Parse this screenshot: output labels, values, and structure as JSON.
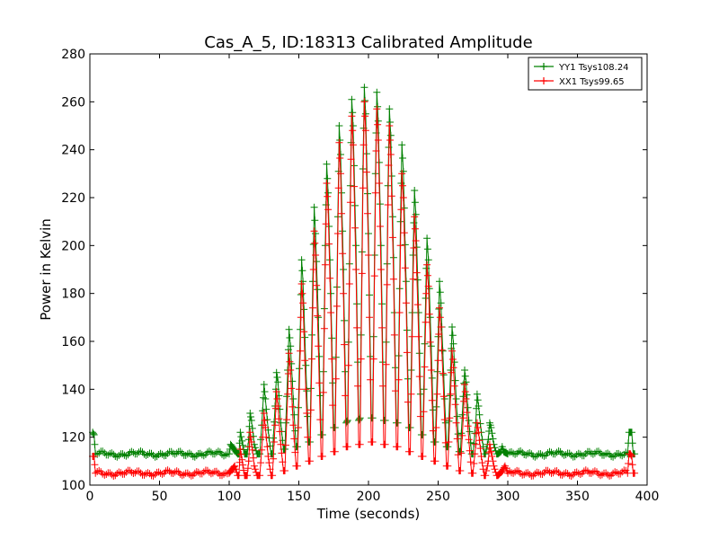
{
  "chart_data": {
    "type": "line",
    "title": "Cas_A_5, ID:18313 Calibrated Amplitude",
    "xlabel": "Time (seconds)",
    "ylabel": "Power in Kelvin",
    "xlim": [
      0,
      400
    ],
    "ylim": [
      100,
      280
    ],
    "xticks": [
      "0",
      "50",
      "100",
      "150",
      "200",
      "250",
      "300",
      "350",
      "400"
    ],
    "yticks": [
      "100",
      "120",
      "140",
      "160",
      "180",
      "200",
      "220",
      "240",
      "260",
      "280"
    ],
    "grid": false,
    "legend_position": "top-right",
    "series": [
      {
        "name": "YY1 Tsys108.24",
        "color": "#008000",
        "marker": "plus",
        "baseline": 113,
        "points": [
          [
            2,
            122
          ],
          [
            3,
            121
          ],
          [
            4,
            113
          ],
          [
            100,
            113
          ],
          [
            101,
            117
          ],
          [
            106,
            113
          ],
          [
            107,
            113
          ],
          [
            108,
            122
          ],
          [
            111,
            113
          ],
          [
            113,
            113
          ],
          [
            114,
            119
          ],
          [
            115,
            130
          ],
          [
            116,
            127
          ],
          [
            118,
            117
          ],
          [
            120,
            113
          ],
          [
            122,
            113
          ],
          [
            124,
            131
          ],
          [
            125,
            142
          ],
          [
            126,
            136
          ],
          [
            128,
            123
          ],
          [
            130,
            113
          ],
          [
            131,
            113
          ],
          [
            133,
            133
          ],
          [
            134,
            147
          ],
          [
            135,
            143
          ],
          [
            137,
            126
          ],
          [
            139,
            115
          ],
          [
            140,
            115
          ],
          [
            142,
            148
          ],
          [
            143,
            165
          ],
          [
            144,
            158
          ],
          [
            146,
            136
          ],
          [
            148,
            116
          ],
          [
            149,
            116
          ],
          [
            151,
            165
          ],
          [
            152,
            194
          ],
          [
            153,
            185
          ],
          [
            155,
            150
          ],
          [
            157,
            118
          ],
          [
            158,
            118
          ],
          [
            160,
            185
          ],
          [
            161,
            216
          ],
          [
            162,
            205
          ],
          [
            164,
            170
          ],
          [
            166,
            121
          ],
          [
            167,
            121
          ],
          [
            169,
            200
          ],
          [
            170,
            234
          ],
          [
            171,
            222
          ],
          [
            173,
            180
          ],
          [
            175,
            124
          ],
          [
            176,
            124
          ],
          [
            178,
            212
          ],
          [
            179,
            250
          ],
          [
            180,
            238
          ],
          [
            182,
            190
          ],
          [
            184,
            126
          ],
          [
            185,
            127
          ],
          [
            187,
            225
          ],
          [
            188,
            261
          ],
          [
            189,
            250
          ],
          [
            191,
            200
          ],
          [
            193,
            127
          ],
          [
            194,
            128
          ],
          [
            196,
            232
          ],
          [
            197,
            266
          ],
          [
            198,
            255
          ],
          [
            200,
            205
          ],
          [
            202,
            128
          ],
          [
            203,
            128
          ],
          [
            205,
            230
          ],
          [
            206,
            264
          ],
          [
            207,
            252
          ],
          [
            209,
            200
          ],
          [
            211,
            127
          ],
          [
            212,
            127
          ],
          [
            214,
            225
          ],
          [
            215,
            257
          ],
          [
            216,
            246
          ],
          [
            218,
            195
          ],
          [
            220,
            126
          ],
          [
            221,
            126
          ],
          [
            223,
            210
          ],
          [
            224,
            242
          ],
          [
            225,
            231
          ],
          [
            227,
            185
          ],
          [
            229,
            124
          ],
          [
            230,
            124
          ],
          [
            232,
            196
          ],
          [
            233,
            223
          ],
          [
            234,
            213
          ],
          [
            236,
            172
          ],
          [
            238,
            121
          ],
          [
            239,
            121
          ],
          [
            241,
            178
          ],
          [
            242,
            203
          ],
          [
            243,
            194
          ],
          [
            245,
            158
          ],
          [
            247,
            118
          ],
          [
            248,
            118
          ],
          [
            250,
            162
          ],
          [
            251,
            185
          ],
          [
            252,
            176
          ],
          [
            254,
            146
          ],
          [
            256,
            116
          ],
          [
            257,
            116
          ],
          [
            259,
            148
          ],
          [
            260,
            166
          ],
          [
            261,
            159
          ],
          [
            263,
            136
          ],
          [
            265,
            114
          ],
          [
            266,
            114
          ],
          [
            268,
            137
          ],
          [
            269,
            148
          ],
          [
            270,
            143
          ],
          [
            272,
            127
          ],
          [
            274,
            113
          ],
          [
            275,
            113
          ],
          [
            277,
            126
          ],
          [
            278,
            138
          ],
          [
            279,
            133
          ],
          [
            281,
            122
          ],
          [
            283,
            113
          ],
          [
            284,
            113
          ],
          [
            286,
            119
          ],
          [
            287,
            126
          ],
          [
            288,
            124
          ],
          [
            290,
            117
          ],
          [
            292,
            113
          ],
          [
            293,
            113
          ],
          [
            295,
            114
          ],
          [
            296,
            116
          ],
          [
            297,
            114
          ],
          [
            300,
            113
          ],
          [
            386,
            113
          ],
          [
            387,
            122
          ],
          [
            388,
            122
          ],
          [
            389,
            122
          ],
          [
            390,
            113
          ],
          [
            391,
            113
          ]
        ]
      },
      {
        "name": "XX1 Tsys99.65",
        "color": "#ff0000",
        "marker": "plus",
        "baseline": 105,
        "points": [
          [
            2,
            112
          ],
          [
            3,
            112
          ],
          [
            4,
            105
          ],
          [
            100,
            105
          ],
          [
            104,
            108
          ],
          [
            106,
            104
          ],
          [
            107,
            104
          ],
          [
            108,
            115
          ],
          [
            111,
            104
          ],
          [
            113,
            104
          ],
          [
            114,
            110
          ],
          [
            115,
            122
          ],
          [
            116,
            118
          ],
          [
            118,
            108
          ],
          [
            120,
            104
          ],
          [
            122,
            104
          ],
          [
            124,
            120
          ],
          [
            125,
            130
          ],
          [
            126,
            124
          ],
          [
            128,
            112
          ],
          [
            130,
            104
          ],
          [
            131,
            104
          ],
          [
            133,
            125
          ],
          [
            134,
            139
          ],
          [
            135,
            133
          ],
          [
            137,
            117
          ],
          [
            139,
            106
          ],
          [
            140,
            106
          ],
          [
            142,
            138
          ],
          [
            143,
            155
          ],
          [
            144,
            148
          ],
          [
            146,
            125
          ],
          [
            148,
            108
          ],
          [
            149,
            108
          ],
          [
            151,
            156
          ],
          [
            152,
            184
          ],
          [
            153,
            176
          ],
          [
            155,
            140
          ],
          [
            157,
            110
          ],
          [
            158,
            110
          ],
          [
            160,
            174
          ],
          [
            161,
            206
          ],
          [
            162,
            196
          ],
          [
            164,
            158
          ],
          [
            166,
            112
          ],
          [
            167,
            112
          ],
          [
            169,
            192
          ],
          [
            170,
            226
          ],
          [
            171,
            215
          ],
          [
            173,
            172
          ],
          [
            175,
            114
          ],
          [
            176,
            114
          ],
          [
            178,
            205
          ],
          [
            179,
            243
          ],
          [
            180,
            230
          ],
          [
            182,
            180
          ],
          [
            184,
            116
          ],
          [
            185,
            116
          ],
          [
            187,
            218
          ],
          [
            188,
            254
          ],
          [
            189,
            242
          ],
          [
            191,
            190
          ],
          [
            193,
            117
          ],
          [
            194,
            117
          ],
          [
            196,
            224
          ],
          [
            197,
            260
          ],
          [
            198,
            248
          ],
          [
            200,
            196
          ],
          [
            202,
            118
          ],
          [
            203,
            118
          ],
          [
            205,
            222
          ],
          [
            206,
            257
          ],
          [
            207,
            244
          ],
          [
            209,
            190
          ],
          [
            211,
            117
          ],
          [
            212,
            117
          ],
          [
            214,
            217
          ],
          [
            215,
            250
          ],
          [
            216,
            238
          ],
          [
            218,
            186
          ],
          [
            220,
            116
          ],
          [
            221,
            116
          ],
          [
            223,
            200
          ],
          [
            224,
            230
          ],
          [
            225,
            220
          ],
          [
            227,
            176
          ],
          [
            229,
            114
          ],
          [
            230,
            114
          ],
          [
            232,
            186
          ],
          [
            233,
            212
          ],
          [
            234,
            202
          ],
          [
            236,
            162
          ],
          [
            238,
            112
          ],
          [
            239,
            112
          ],
          [
            241,
            168
          ],
          [
            242,
            192
          ],
          [
            243,
            183
          ],
          [
            245,
            148
          ],
          [
            247,
            110
          ],
          [
            248,
            110
          ],
          [
            250,
            152
          ],
          [
            251,
            174
          ],
          [
            252,
            166
          ],
          [
            254,
            137
          ],
          [
            256,
            108
          ],
          [
            257,
            108
          ],
          [
            259,
            138
          ],
          [
            260,
            156
          ],
          [
            261,
            149
          ],
          [
            263,
            126
          ],
          [
            265,
            106
          ],
          [
            266,
            106
          ],
          [
            268,
            128
          ],
          [
            269,
            142
          ],
          [
            270,
            136
          ],
          [
            272,
            119
          ],
          [
            274,
            105
          ],
          [
            275,
            105
          ],
          [
            277,
            117
          ],
          [
            278,
            126
          ],
          [
            279,
            122
          ],
          [
            281,
            112
          ],
          [
            283,
            104
          ],
          [
            284,
            104
          ],
          [
            286,
            110
          ],
          [
            287,
            117
          ],
          [
            288,
            114
          ],
          [
            290,
            108
          ],
          [
            292,
            104
          ],
          [
            293,
            104
          ],
          [
            296,
            106
          ],
          [
            298,
            108
          ],
          [
            300,
            105
          ],
          [
            386,
            105
          ],
          [
            387,
            113
          ],
          [
            388,
            113
          ],
          [
            389,
            112
          ],
          [
            390,
            105
          ],
          [
            391,
            105
          ]
        ]
      }
    ]
  }
}
